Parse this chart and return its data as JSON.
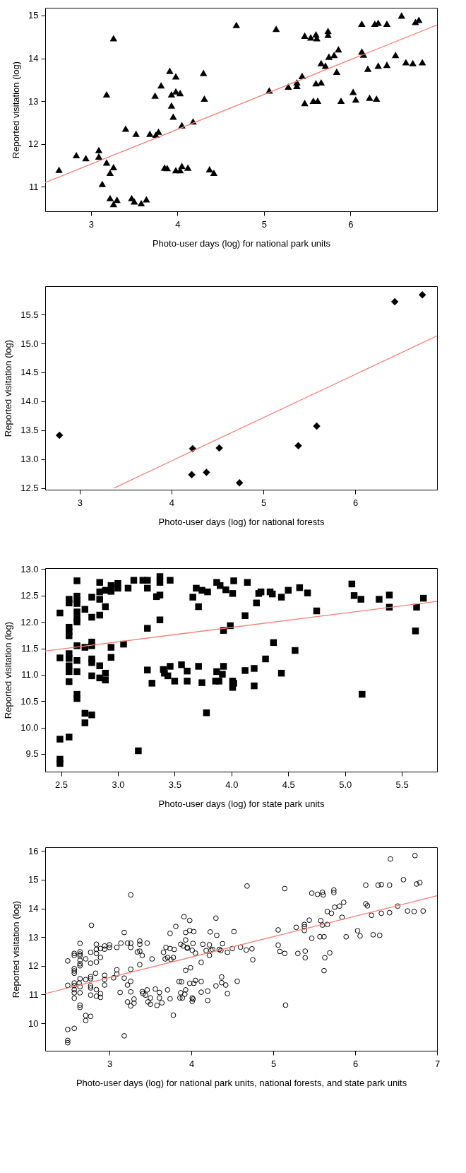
{
  "chart_data": [
    {
      "type": "scatter",
      "xlabel": "Photo-user days (log) for national park units",
      "ylabel": "Reported visitation (log)",
      "xlim": [
        2.47,
        7.0
      ],
      "ylim": [
        10.43,
        15.18
      ],
      "xticks": [
        3,
        4,
        5,
        6
      ],
      "yticks": [
        11,
        12,
        13,
        14,
        15
      ],
      "grid": false,
      "series": [
        {
          "color": "#000000",
          "marker": "triangle",
          "x": [
            2.63,
            2.83,
            2.94,
            3.09,
            3.09,
            3.18,
            3.13,
            3.18,
            3.26,
            3.26,
            3.22,
            3.22,
            3.26,
            3.3,
            3.4,
            3.47,
            3.5,
            3.52,
            3.58,
            3.64,
            3.68,
            3.75,
            3.78,
            3.74,
            3.81,
            3.91,
            3.93,
            3.95,
            3.93,
            3.98,
            3.98,
            4.03,
            4.05,
            4.18,
            4.3,
            4.31,
            3.85,
            3.88,
            3.98,
            4.03,
            4.05,
            4.12,
            4.37,
            4.42,
            4.68,
            5.06,
            5.14,
            5.28,
            5.38,
            5.38,
            5.44,
            5.47,
            5.47,
            5.54,
            5.57,
            5.6,
            5.61,
            5.6,
            5.62,
            5.66,
            5.66,
            5.71,
            5.74,
            5.74,
            5.75,
            5.81,
            5.86,
            5.84,
            5.89,
            6.03,
            6.06,
            6.13,
            6.13,
            6.15,
            6.2,
            6.22,
            6.3,
            6.28,
            6.32,
            6.32,
            6.42,
            6.42,
            6.52,
            6.59,
            6.64,
            6.72,
            6.75,
            6.79,
            6.83
          ],
          "values": [
            11.4,
            11.74,
            11.67,
            11.86,
            11.71,
            11.57,
            11.07,
            13.16,
            14.47,
            11.46,
            11.33,
            10.74,
            10.6,
            10.7,
            12.36,
            10.74,
            10.66,
            12.24,
            10.62,
            10.71,
            12.24,
            12.22,
            12.29,
            13.13,
            13.37,
            13.71,
            12.9,
            12.64,
            13.16,
            13.23,
            13.58,
            13.19,
            12.44,
            12.53,
            13.66,
            13.06,
            11.45,
            11.44,
            11.39,
            11.39,
            11.49,
            11.45,
            11.41,
            11.33,
            14.78,
            13.25,
            14.69,
            13.34,
            13.36,
            13.44,
            13.59,
            12.96,
            14.53,
            14.49,
            13.01,
            14.56,
            14.47,
            13.42,
            13.01,
            13.44,
            13.89,
            13.83,
            14.64,
            14.55,
            14.04,
            14.08,
            14.21,
            13.69,
            13.01,
            13.22,
            13.04,
            14.81,
            14.16,
            14.09,
            13.76,
            13.08,
            13.06,
            14.81,
            14.83,
            13.83,
            14.81,
            13.85,
            14.08,
            15.0,
            13.91,
            13.89,
            14.85,
            14.9,
            13.91
          ]
        },
        {
          "type": "line",
          "color": "#f47f77",
          "x": [
            2.47,
            7.0
          ],
          "values": [
            11.1,
            14.78
          ]
        }
      ]
    },
    {
      "type": "scatter",
      "xlabel": "Photo-user days (log) for national forests",
      "ylabel": "Reported visitation (log)",
      "xlim": [
        2.625,
        6.89
      ],
      "ylim": [
        12.47,
        15.99
      ],
      "xticks": [
        3,
        4,
        5,
        6
      ],
      "yticks": [
        12.5,
        {
          "value": 13,
          "label": "13.0"
        },
        13.5,
        {
          "value": 14,
          "label": "14.0"
        },
        14.5,
        {
          "value": 15,
          "label": "15.0"
        },
        15.5
      ],
      "grid": false,
      "series": [
        {
          "color": "#000000",
          "marker": "diamond",
          "x": [
            2.78,
            4.23,
            4.22,
            4.38,
            4.52,
            4.74,
            5.38,
            5.58,
            6.43,
            6.73
          ],
          "values": [
            13.41,
            13.18,
            12.73,
            12.77,
            13.19,
            12.59,
            13.23,
            13.57,
            15.72,
            15.84
          ]
        },
        {
          "type": "line",
          "color": "#f47f77",
          "x": [
            3.375,
            6.89
          ],
          "values": [
            12.5,
            15.13
          ]
        }
      ]
    },
    {
      "type": "scatter",
      "xlabel": "Photo-user days (log) for state park units",
      "ylabel": "Reported visitation (log)",
      "xlim": [
        2.36,
        5.81
      ],
      "ylim": [
        9.165,
        13.02
      ],
      "xticks": [
        2.5,
        {
          "value": 3,
          "label": "3.0"
        },
        3.5,
        {
          "value": 4,
          "label": "4.0"
        },
        4.5,
        {
          "value": 5,
          "label": "5.0"
        },
        5.5
      ],
      "yticks": [
        9.5,
        {
          "value": 10,
          "label": "10.0"
        },
        10.5,
        {
          "value": 11,
          "label": "11.0"
        },
        11.5,
        {
          "value": 12,
          "label": "12.0"
        },
        12.5,
        {
          "value": 13,
          "label": "13.0"
        }
      ],
      "grid": false,
      "series": [
        {
          "color": "#000000",
          "marker": "square",
          "x": [
            2.49,
            2.49,
            2.49,
            2.49,
            2.49,
            2.57,
            2.57,
            2.57,
            2.57,
            2.57,
            2.57,
            2.57,
            2.57,
            2.57,
            2.57,
            2.57,
            2.64,
            2.64,
            2.64,
            2.64,
            2.64,
            2.64,
            2.64,
            2.64,
            2.64,
            2.64,
            2.64,
            2.64,
            2.71,
            2.71,
            2.71,
            2.71,
            2.77,
            2.77,
            2.77,
            2.77,
            2.77,
            2.77,
            2.77,
            2.77,
            2.84,
            2.84,
            2.84,
            2.84,
            2.84,
            2.84,
            2.89,
            2.89,
            2.89,
            2.89,
            2.94,
            2.94,
            2.94,
            2.94,
            3.0,
            3.0,
            3.05,
            3.09,
            3.14,
            3.18,
            3.22,
            3.26,
            3.26,
            3.26,
            3.26,
            3.3,
            3.34,
            3.37,
            3.37,
            3.37,
            3.37,
            3.4,
            3.41,
            3.44,
            3.46,
            3.46,
            3.5,
            3.56,
            3.61,
            3.61,
            3.66,
            3.69,
            3.71,
            3.71,
            3.74,
            3.74,
            3.79,
            3.78,
            3.86,
            3.87,
            3.87,
            3.89,
            3.9,
            3.93,
            3.93,
            3.92,
            3.95,
            3.99,
            4.01,
            4.01,
            4.02,
            4.01,
            4.02,
            4.12,
            4.12,
            4.14,
            4.2,
            4.2,
            4.22,
            4.24,
            4.26,
            4.3,
            4.34,
            4.36,
            4.37,
            4.44,
            4.44,
            4.5,
            4.56,
            4.6,
            4.67,
            4.75,
            5.06,
            5.08,
            5.14,
            5.15,
            5.3,
            5.39,
            5.39,
            5.62,
            5.63,
            5.69
          ],
          "values": [
            12.17,
            11.32,
            9.78,
            9.4,
            9.32,
            12.43,
            12.36,
            11.9,
            11.82,
            11.74,
            11.4,
            11.31,
            11.17,
            11.06,
            10.87,
            9.82,
            12.78,
            12.49,
            12.41,
            12.35,
            12.19,
            12.07,
            12.0,
            11.55,
            11.27,
            11.06,
            10.63,
            10.55,
            12.24,
            11.52,
            10.27,
            10.09,
            12.47,
            12.09,
            11.62,
            11.55,
            11.3,
            11.23,
            10.98,
            10.24,
            12.75,
            12.57,
            12.43,
            12.13,
            11.17,
            10.94,
            12.6,
            12.29,
            11.03,
            10.9,
            12.58,
            12.69,
            11.52,
            11.33,
            12.73,
            12.64,
            11.58,
            12.64,
            12.79,
            9.56,
            12.79,
            12.79,
            12.64,
            11.88,
            11.09,
            10.84,
            12.48,
            12.86,
            12.75,
            12.51,
            12.04,
            11.1,
            11.03,
            10.98,
            11.16,
            12.79,
            10.88,
            11.19,
            11.07,
            10.88,
            12.47,
            12.64,
            12.29,
            11.16,
            10.85,
            12.6,
            12.57,
            10.28,
            10.88,
            12.75,
            11.06,
            10.88,
            12.69,
            11.84,
            11.16,
            11.01,
            12.61,
            11.93,
            10.88,
            10.76,
            10.84,
            12.54,
            12.78,
            12.12,
            11.08,
            12.75,
            11.12,
            10.79,
            12.36,
            12.54,
            12.57,
            11.3,
            12.57,
            12.53,
            11.61,
            12.47,
            11.03,
            12.6,
            11.46,
            12.65,
            12.55,
            12.21,
            12.72,
            12.5,
            12.43,
            10.63,
            12.43,
            12.51,
            12.28,
            11.83,
            12.28,
            12.45
          ]
        },
        {
          "type": "line",
          "color": "#f47f77",
          "x": [
            2.36,
            5.81
          ],
          "values": [
            11.45,
            12.39
          ]
        }
      ]
    },
    {
      "type": "scatter",
      "xlabel": "Photo-user days (log) for national park units, national forests, and state park units",
      "ylabel": "Reported visitation (log)",
      "xlim": [
        2.215,
        7.0
      ],
      "ylim": [
        9.04,
        16.13
      ],
      "xticks": [
        3,
        4,
        5,
        6,
        7
      ],
      "yticks": [
        10,
        11,
        12,
        13,
        14,
        15,
        16
      ],
      "grid": false,
      "series": [
        {
          "color": "#000000",
          "marker": "circle",
          "x": [
            2.63,
            2.83,
            2.94,
            3.09,
            3.09,
            3.18,
            3.13,
            3.18,
            3.26,
            3.26,
            3.22,
            3.22,
            3.26,
            3.3,
            3.4,
            3.47,
            3.5,
            3.52,
            3.58,
            3.64,
            3.68,
            3.75,
            3.78,
            3.74,
            3.81,
            3.91,
            3.93,
            3.95,
            3.93,
            3.98,
            3.98,
            4.03,
            4.05,
            4.18,
            4.3,
            4.31,
            3.85,
            3.88,
            3.98,
            4.03,
            4.05,
            4.12,
            4.37,
            4.42,
            4.68,
            5.06,
            5.14,
            5.28,
            5.38,
            5.38,
            5.44,
            5.47,
            5.47,
            5.54,
            5.57,
            5.6,
            5.61,
            5.6,
            5.62,
            5.66,
            5.66,
            5.71,
            5.74,
            5.74,
            5.75,
            5.81,
            5.86,
            5.84,
            5.89,
            6.03,
            6.06,
            6.13,
            6.13,
            6.15,
            6.2,
            6.22,
            6.3,
            6.28,
            6.32,
            6.32,
            6.42,
            6.42,
            6.52,
            6.59,
            6.64,
            6.72,
            6.75,
            6.79,
            6.83
          ],
          "values": [
            11.4,
            11.74,
            11.67,
            11.86,
            11.71,
            11.57,
            11.07,
            13.16,
            14.47,
            11.46,
            11.33,
            10.74,
            10.6,
            10.7,
            12.36,
            10.74,
            10.66,
            12.24,
            10.62,
            10.71,
            12.24,
            12.22,
            12.29,
            13.13,
            13.37,
            13.71,
            12.9,
            12.64,
            13.16,
            13.23,
            13.58,
            13.19,
            12.44,
            12.53,
            13.66,
            13.06,
            11.45,
            11.44,
            11.39,
            11.39,
            11.49,
            11.45,
            11.41,
            11.33,
            14.78,
            13.25,
            14.69,
            13.34,
            13.36,
            13.44,
            13.59,
            12.96,
            14.53,
            14.49,
            13.01,
            14.56,
            14.47,
            13.42,
            13.01,
            13.44,
            13.89,
            13.83,
            14.64,
            14.55,
            14.04,
            14.08,
            14.21,
            13.69,
            13.01,
            13.22,
            13.04,
            14.81,
            14.16,
            14.09,
            13.76,
            13.08,
            13.06,
            14.81,
            14.83,
            13.83,
            14.81,
            13.85,
            14.08,
            15.0,
            13.91,
            13.89,
            14.85,
            14.9,
            13.91
          ]
        },
        {
          "color": "#000000",
          "marker": "circle",
          "x": [
            2.78,
            4.23,
            4.22,
            4.38,
            4.52,
            4.74,
            5.38,
            5.58,
            6.43,
            6.73
          ],
          "values": [
            13.41,
            13.18,
            12.73,
            12.77,
            13.19,
            12.59,
            13.23,
            13.57,
            15.72,
            15.84
          ]
        },
        {
          "color": "#000000",
          "marker": "circle",
          "x": [
            2.49,
            2.49,
            2.49,
            2.49,
            2.49,
            2.57,
            2.57,
            2.57,
            2.57,
            2.57,
            2.57,
            2.57,
            2.57,
            2.57,
            2.57,
            2.57,
            2.64,
            2.64,
            2.64,
            2.64,
            2.64,
            2.64,
            2.64,
            2.64,
            2.64,
            2.64,
            2.64,
            2.64,
            2.71,
            2.71,
            2.71,
            2.71,
            2.77,
            2.77,
            2.77,
            2.77,
            2.77,
            2.77,
            2.77,
            2.77,
            2.84,
            2.84,
            2.84,
            2.84,
            2.84,
            2.84,
            2.89,
            2.89,
            2.89,
            2.89,
            2.94,
            2.94,
            2.94,
            2.94,
            3.0,
            3.0,
            3.05,
            3.09,
            3.14,
            3.18,
            3.22,
            3.26,
            3.26,
            3.26,
            3.26,
            3.3,
            3.34,
            3.37,
            3.37,
            3.37,
            3.37,
            3.4,
            3.41,
            3.44,
            3.46,
            3.46,
            3.5,
            3.56,
            3.61,
            3.61,
            3.66,
            3.69,
            3.71,
            3.71,
            3.74,
            3.74,
            3.79,
            3.78,
            3.86,
            3.87,
            3.87,
            3.89,
            3.9,
            3.93,
            3.93,
            3.92,
            3.95,
            3.99,
            4.01,
            4.01,
            4.02,
            4.01,
            4.02,
            4.12,
            4.12,
            4.14,
            4.2,
            4.2,
            4.22,
            4.24,
            4.26,
            4.3,
            4.34,
            4.36,
            4.37,
            4.44,
            4.44,
            4.5,
            4.56,
            4.6,
            4.67,
            4.75,
            5.06,
            5.08,
            5.14,
            5.15,
            5.3,
            5.39,
            5.39,
            5.62,
            5.63,
            5.69
          ],
          "values": [
            12.17,
            11.32,
            9.78,
            9.4,
            9.32,
            12.43,
            12.36,
            11.9,
            11.82,
            11.74,
            11.4,
            11.31,
            11.17,
            11.06,
            10.87,
            9.82,
            12.78,
            12.49,
            12.41,
            12.35,
            12.19,
            12.07,
            12.0,
            11.55,
            11.27,
            11.06,
            10.63,
            10.55,
            12.24,
            11.52,
            10.27,
            10.09,
            12.47,
            12.09,
            11.62,
            11.55,
            11.3,
            11.23,
            10.98,
            10.24,
            12.75,
            12.57,
            12.43,
            12.13,
            11.17,
            10.94,
            12.6,
            12.29,
            11.03,
            10.9,
            12.58,
            12.69,
            11.52,
            11.33,
            12.73,
            12.64,
            11.58,
            12.64,
            12.79,
            9.56,
            12.79,
            12.79,
            12.64,
            11.88,
            11.09,
            10.84,
            12.48,
            12.86,
            12.75,
            12.51,
            12.04,
            11.1,
            11.03,
            10.98,
            11.16,
            12.79,
            10.88,
            11.19,
            11.07,
            10.88,
            12.47,
            12.64,
            12.29,
            11.16,
            10.85,
            12.6,
            12.57,
            10.28,
            10.88,
            12.75,
            11.06,
            10.88,
            12.69,
            11.84,
            11.16,
            11.01,
            12.61,
            11.93,
            10.88,
            10.76,
            10.84,
            12.54,
            12.78,
            12.12,
            11.08,
            12.75,
            11.12,
            10.79,
            12.36,
            12.54,
            12.57,
            11.3,
            12.57,
            12.53,
            11.61,
            12.47,
            11.03,
            12.6,
            11.46,
            12.65,
            12.55,
            12.21,
            12.72,
            12.5,
            12.43,
            10.63,
            12.43,
            12.51,
            12.28,
            11.83,
            12.28,
            12.45
          ]
        },
        {
          "type": "line",
          "color": "#f47f77",
          "x": [
            2.215,
            7.0
          ],
          "values": [
            11.03,
            14.44
          ]
        }
      ]
    }
  ]
}
